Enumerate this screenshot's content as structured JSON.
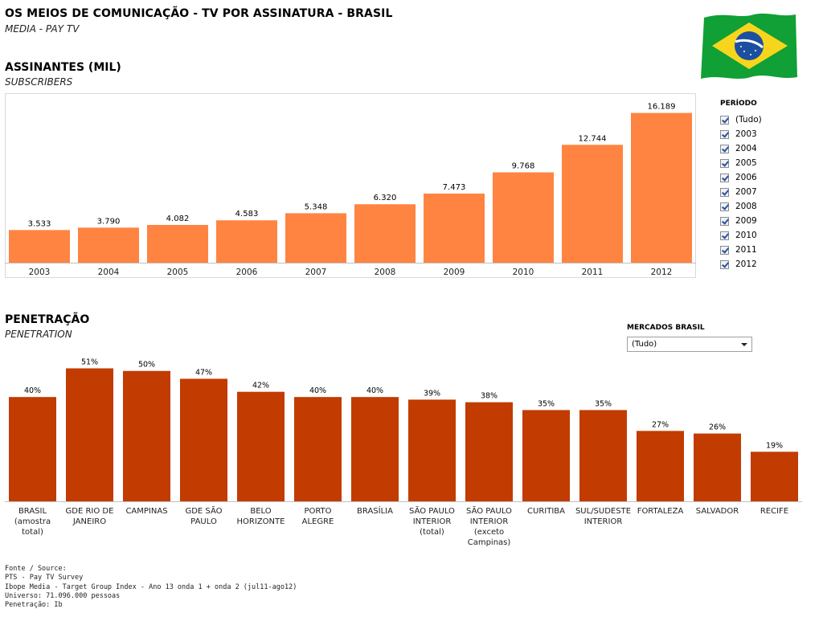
{
  "header": {
    "title": "OS MEIOS DE COMUNICAÇÃO - TV POR ASSINATURA - BRASIL",
    "subtitle": "MEDIA - PAY TV"
  },
  "colors": {
    "subscribers_bar": "#ff8442",
    "penetration_bar": "#c23b00",
    "flag_green": "#10a035",
    "flag_yellow": "#f7d51c",
    "flag_blue": "#1c4fa0"
  },
  "subscribers_section": {
    "title": "ASSINANTES (MIL)",
    "subtitle": "SUBSCRIBERS"
  },
  "penetration_section": {
    "title": "PENETRAÇÃO",
    "subtitle": "PENETRATION"
  },
  "period_filter": {
    "title": "PERÍODO",
    "items": [
      "(Tudo)",
      "2003",
      "2004",
      "2005",
      "2006",
      "2007",
      "2008",
      "2009",
      "2010",
      "2011",
      "2012"
    ]
  },
  "market_filter": {
    "title": "MERCADOS BRASIL",
    "selected": "(Tudo)"
  },
  "chart_data": [
    {
      "type": "bar",
      "categories": [
        "2003",
        "2004",
        "2005",
        "2006",
        "2007",
        "2008",
        "2009",
        "2010",
        "2011",
        "2012"
      ],
      "values": [
        3533,
        3790,
        4082,
        4583,
        5348,
        6320,
        7473,
        9768,
        12744,
        16189
      ],
      "data_labels": [
        "3.533",
        "3.790",
        "4.082",
        "4.583",
        "5.348",
        "6.320",
        "7.473",
        "9.768",
        "12.744",
        "16.189"
      ],
      "ylim": [
        0,
        16500
      ],
      "grid": false
    },
    {
      "type": "bar",
      "categories": [
        [
          "BRASIL",
          "(amostra",
          "total)"
        ],
        [
          "GDE RIO DE",
          "JANEIRO"
        ],
        [
          "CAMPINAS"
        ],
        [
          "GDE SÃO",
          "PAULO"
        ],
        [
          "BELO",
          "HORIZONTE"
        ],
        [
          "PORTO",
          "ALEGRE"
        ],
        [
          "BRASÍLIA"
        ],
        [
          "SÃO PAULO",
          "INTERIOR",
          "(total)"
        ],
        [
          "SÃO PAULO",
          "INTERIOR",
          "(exceto",
          "Campinas)"
        ],
        [
          "CURITIBA"
        ],
        [
          "SUL/SUDESTE",
          "INTERIOR"
        ],
        [
          "FORTALEZA"
        ],
        [
          "SALVADOR"
        ],
        [
          "RECIFE"
        ]
      ],
      "values": [
        40,
        51,
        50,
        47,
        42,
        40,
        40,
        39,
        38,
        35,
        35,
        27,
        26,
        19
      ],
      "data_labels": [
        "40%",
        "51%",
        "50%",
        "47%",
        "42%",
        "40%",
        "40%",
        "39%",
        "38%",
        "35%",
        "35%",
        "27%",
        "26%",
        "19%"
      ],
      "ylim": [
        0,
        53
      ],
      "grid": false
    }
  ],
  "source_lines": [
    "Fonte / Source:",
    "PTS - Pay TV Survey",
    "Ibope Media - Target Group Index - Ano 13 onda 1 + onda 2 (jul11-ago12)",
    "Universo: 71.096.000 pessoas",
    "Penetração: Ib"
  ]
}
